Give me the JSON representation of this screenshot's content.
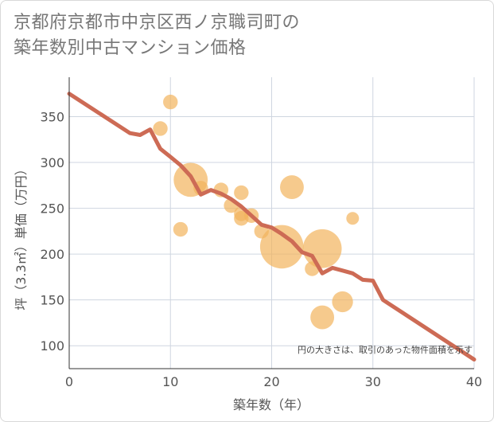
{
  "chart_data": {
    "type": "scatter",
    "title_line1": "京都府京都市中京区西ノ京職司町の",
    "title_line2": "築年数別中古マンション価格",
    "xlabel": "築年数（年）",
    "ylabel": "坪（3.3㎡）単価（万円）",
    "xlim": [
      0,
      40
    ],
    "ylim": [
      75,
      393
    ],
    "xticks": [
      0,
      10,
      20,
      30,
      40
    ],
    "yticks": [
      100,
      150,
      200,
      250,
      300,
      350
    ],
    "note": "円の大きさは、取引のあった物件面積を示す",
    "colors": {
      "bubble": "#f2b35c",
      "line": "#cd6b55",
      "grid": "#cfd6e0"
    },
    "bubbles": [
      {
        "x": 10,
        "y": 366,
        "size": 1
      },
      {
        "x": 9,
        "y": 337,
        "size": 1
      },
      {
        "x": 12,
        "y": 281,
        "size": 4
      },
      {
        "x": 13,
        "y": 272,
        "size": 1
      },
      {
        "x": 15,
        "y": 270,
        "size": 1
      },
      {
        "x": 17,
        "y": 267,
        "size": 1
      },
      {
        "x": 16,
        "y": 253,
        "size": 1
      },
      {
        "x": 17,
        "y": 244,
        "size": 1
      },
      {
        "x": 17,
        "y": 239,
        "size": 1
      },
      {
        "x": 18,
        "y": 242,
        "size": 1
      },
      {
        "x": 11,
        "y": 227,
        "size": 1
      },
      {
        "x": 19,
        "y": 225,
        "size": 1
      },
      {
        "x": 22,
        "y": 273,
        "size": 2
      },
      {
        "x": 21,
        "y": 208,
        "size": 6
      },
      {
        "x": 25,
        "y": 206,
        "size": 5
      },
      {
        "x": 24,
        "y": 184,
        "size": 1
      },
      {
        "x": 28,
        "y": 239,
        "size": 0.5
      },
      {
        "x": 27,
        "y": 148,
        "size": 1.5
      },
      {
        "x": 25,
        "y": 131,
        "size": 2
      }
    ],
    "trend": {
      "x": [
        0,
        6,
        7,
        8,
        9,
        10,
        11,
        12,
        13,
        14,
        15,
        16,
        17,
        18,
        19,
        20,
        21,
        22,
        23,
        24,
        25,
        26,
        27,
        28,
        29,
        30,
        31,
        40
      ],
      "y": [
        375,
        332,
        330,
        336,
        315,
        306,
        297,
        285,
        265,
        270,
        266,
        260,
        252,
        242,
        232,
        229,
        222,
        214,
        202,
        198,
        179,
        185,
        182,
        179,
        172,
        171,
        150,
        85
      ]
    }
  }
}
